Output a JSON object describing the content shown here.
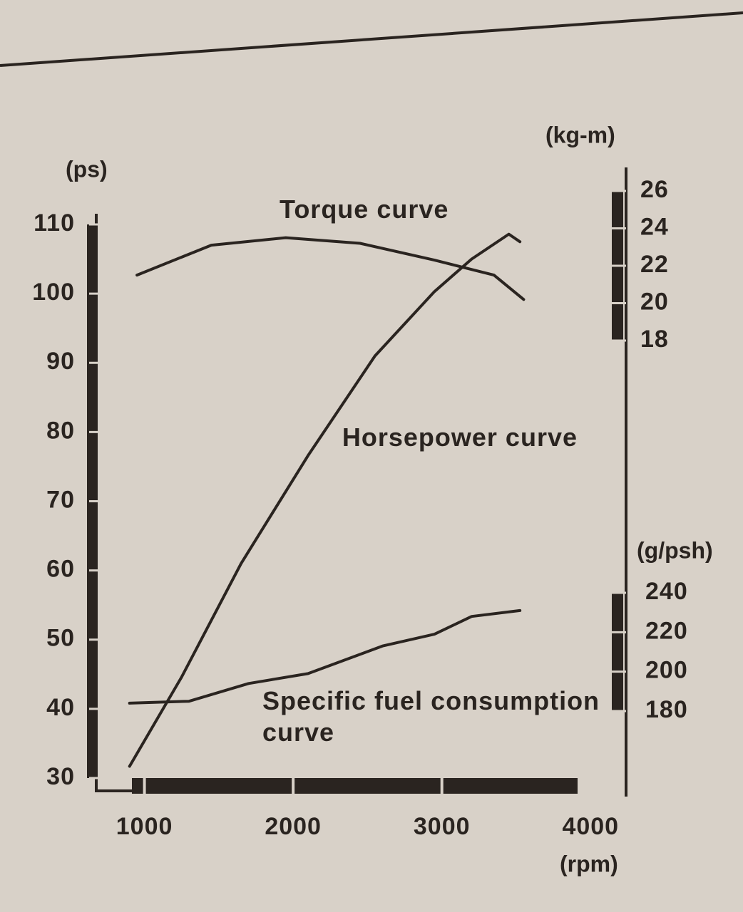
{
  "chart_data": {
    "type": "line",
    "xlabel": "(rpm)",
    "ylabel": "(ps)",
    "y2label": "(kg-m)",
    "y3label": "(g/psh)",
    "xlim": [
      700,
      4200
    ],
    "xticks": [
      1000,
      2000,
      3000,
      4000
    ],
    "ylim": [
      30,
      110
    ],
    "yticks": [
      30,
      40,
      50,
      60,
      70,
      80,
      90,
      100,
      110
    ],
    "y2lim": [
      18,
      26
    ],
    "y2ticks": [
      18,
      20,
      22,
      24,
      26
    ],
    "y3lim": [
      180,
      240
    ],
    "y3ticks": [
      180,
      200,
      220,
      240
    ],
    "grid": false,
    "series": [
      {
        "name": "Torque curve",
        "color": "#2a2420",
        "axis": "y2",
        "x": [
          950,
          1450,
          1950,
          2450,
          2950,
          3350,
          3550
        ],
        "values": [
          21.5,
          23.1,
          23.5,
          23.2,
          22.3,
          21.5,
          20.2
        ]
      },
      {
        "name": "Horsepower curve",
        "color": "#2a2420",
        "axis": "y",
        "x": [
          900,
          1250,
          1650,
          2100,
          2550,
          2950,
          3200,
          3450,
          3525
        ],
        "values": [
          31.7,
          44.6,
          61,
          76.6,
          91,
          100.3,
          105,
          108.6,
          107.5
        ]
      },
      {
        "name": "Specific fuel consumption curve",
        "color": "#2a2420",
        "axis": "y3",
        "x": [
          900,
          1300,
          1700,
          2100,
          2600,
          2950,
          3200,
          3525
        ],
        "values": [
          184,
          185,
          194,
          199,
          213,
          219,
          228,
          231
        ]
      }
    ]
  }
}
